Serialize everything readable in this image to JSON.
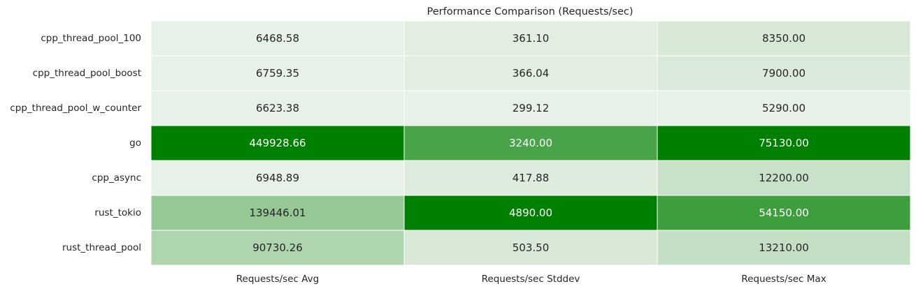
{
  "chart_data": {
    "type": "heatmap",
    "title": "Performance Comparison (Requests/sec)",
    "rows": [
      "cpp_thread_pool_100",
      "cpp_thread_pool_boost",
      "cpp_thread_pool_w_counter",
      "go",
      "cpp_async",
      "rust_tokio",
      "rust_thread_pool"
    ],
    "columns": [
      "Requests/sec Avg",
      "Requests/sec Stddev",
      "Requests/sec Max"
    ],
    "values": [
      [
        6468.58,
        361.1,
        8350.0
      ],
      [
        6759.35,
        366.04,
        7900.0
      ],
      [
        6623.38,
        299.12,
        5290.0
      ],
      [
        449928.66,
        3240.0,
        75130.0
      ],
      [
        6948.89,
        417.88,
        12200.0
      ],
      [
        139446.01,
        4890.0,
        54150.0
      ],
      [
        90730.26,
        503.5,
        13210.0
      ]
    ],
    "value_labels": [
      [
        "6468.58",
        "361.10",
        "8350.00"
      ],
      [
        "6759.35",
        "366.04",
        "7900.00"
      ],
      [
        "6623.38",
        "299.12",
        "5290.00"
      ],
      [
        "449928.66",
        "3240.00",
        "75130.00"
      ],
      [
        "6948.89",
        "417.88",
        "12200.00"
      ],
      [
        "139446.01",
        "4890.00",
        "54150.00"
      ],
      [
        "90730.26",
        "503.50",
        "13210.00"
      ]
    ],
    "colormap": {
      "low": "#e8f1e8",
      "high": "#008000"
    },
    "text_colors": {
      "dark": "#262626",
      "light": "#ffffff"
    },
    "grid_line_color": "#ffffff",
    "legend": "none"
  }
}
